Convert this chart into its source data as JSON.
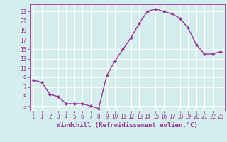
{
  "x": [
    0,
    1,
    2,
    3,
    4,
    5,
    6,
    7,
    8,
    9,
    10,
    11,
    12,
    13,
    14,
    15,
    16,
    17,
    18,
    19,
    20,
    21,
    22,
    23
  ],
  "y": [
    8.5,
    8.0,
    5.5,
    5.0,
    3.5,
    3.5,
    3.5,
    3.0,
    2.5,
    9.5,
    12.5,
    15.0,
    17.5,
    20.5,
    23.0,
    23.5,
    23.0,
    22.5,
    21.5,
    19.5,
    16.0,
    14.0,
    14.0,
    14.5
  ],
  "line_color": "#993399",
  "marker": "D",
  "markersize": 2,
  "linewidth": 1.0,
  "xlabel": "Windchill (Refroidissement éolien,°C)",
  "xlabel_fontsize": 6.5,
  "ylabel_ticks": [
    3,
    5,
    7,
    9,
    11,
    13,
    15,
    17,
    19,
    21,
    23
  ],
  "xticks": [
    0,
    1,
    2,
    3,
    4,
    5,
    6,
    7,
    8,
    9,
    10,
    11,
    12,
    13,
    14,
    15,
    16,
    17,
    18,
    19,
    20,
    21,
    22,
    23
  ],
  "xtick_labels": [
    "0",
    "1",
    "2",
    "3",
    "4",
    "5",
    "6",
    "7",
    "8",
    "9",
    "10",
    "11",
    "12",
    "13",
    "14",
    "15",
    "16",
    "17",
    "18",
    "19",
    "20",
    "21",
    "22",
    "23"
  ],
  "xlim": [
    -0.5,
    23.5
  ],
  "ylim": [
    2.0,
    24.5
  ],
  "bg_color": "#d4eeee",
  "grid_color": "#b0d8d8",
  "tick_color": "#993399",
  "tick_fontsize": 5.5,
  "spine_color": "#993399",
  "xlabel_fontweight": "bold"
}
